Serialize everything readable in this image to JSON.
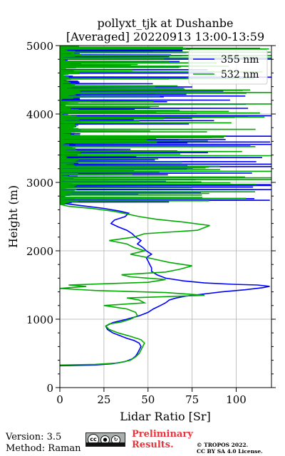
{
  "chart_data": {
    "type": "line",
    "title": "pollyxt_tjk at Dushanbe",
    "subtitle": "[Averaged] 20220913 13:00-13:59",
    "xlabel": "Lidar Ratio [Sr]",
    "ylabel": "Height (m)",
    "xlim": [
      0,
      120
    ],
    "ylim": [
      0,
      5000
    ],
    "xticks": [
      "0",
      "25",
      "50",
      "75",
      "100"
    ],
    "yticks": [
      "0",
      "1000",
      "2000",
      "3000",
      "4000",
      "5000"
    ],
    "grid": true,
    "legend_position": "top-right",
    "series": [
      {
        "name": "355 nm",
        "color": "#0000ff",
        "points": [
          [
            0,
            320
          ],
          [
            20,
            330
          ],
          [
            30,
            350
          ],
          [
            37,
            380
          ],
          [
            41,
            420
          ],
          [
            43,
            460
          ],
          [
            44,
            500
          ],
          [
            45,
            550
          ],
          [
            46,
            600
          ],
          [
            45,
            650
          ],
          [
            42,
            690
          ],
          [
            38,
            720
          ],
          [
            34,
            760
          ],
          [
            30,
            800
          ],
          [
            27,
            850
          ],
          [
            26,
            900
          ],
          [
            30,
            950
          ],
          [
            38,
            1000
          ],
          [
            45,
            1050
          ],
          [
            50,
            1100
          ],
          [
            53,
            1150
          ],
          [
            57,
            1200
          ],
          [
            60,
            1240
          ],
          [
            62,
            1280
          ],
          [
            66,
            1310
          ],
          [
            72,
            1340
          ],
          [
            82,
            1370
          ],
          [
            92,
            1400
          ],
          [
            105,
            1430
          ],
          [
            115,
            1460
          ],
          [
            119,
            1480
          ],
          [
            112,
            1500
          ],
          [
            98,
            1510
          ],
          [
            82,
            1530
          ],
          [
            70,
            1560
          ],
          [
            60,
            1600
          ],
          [
            55,
            1650
          ],
          [
            52,
            1700
          ],
          [
            52,
            1750
          ],
          [
            51,
            1800
          ],
          [
            50,
            1850
          ],
          [
            49,
            1900
          ],
          [
            52,
            1950
          ],
          [
            49,
            2000
          ],
          [
            47,
            2050
          ],
          [
            44,
            2100
          ],
          [
            46,
            2150
          ],
          [
            43,
            2200
          ],
          [
            41,
            2250
          ],
          [
            38,
            2300
          ],
          [
            33,
            2350
          ],
          [
            29,
            2400
          ],
          [
            31,
            2450
          ],
          [
            37,
            2500
          ],
          [
            39,
            2550
          ],
          [
            34,
            2580
          ],
          [
            25,
            2620
          ],
          [
            12,
            2660
          ],
          [
            0,
            2700
          ]
        ],
        "spikes_band": [
          2700,
          5000
        ]
      },
      {
        "name": "532 nm",
        "color": "#00aa00",
        "points": [
          [
            0,
            330
          ],
          [
            20,
            340
          ],
          [
            33,
            360
          ],
          [
            40,
            400
          ],
          [
            43,
            450
          ],
          [
            45,
            500
          ],
          [
            46,
            550
          ],
          [
            47,
            600
          ],
          [
            48,
            650
          ],
          [
            46,
            700
          ],
          [
            40,
            750
          ],
          [
            33,
            800
          ],
          [
            28,
            850
          ],
          [
            26,
            900
          ],
          [
            28,
            930
          ],
          [
            35,
            960
          ],
          [
            40,
            1000
          ],
          [
            44,
            1050
          ],
          [
            43,
            1100
          ],
          [
            38,
            1150
          ],
          [
            25,
            1200
          ],
          [
            48,
            1240
          ],
          [
            45,
            1280
          ],
          [
            38,
            1310
          ],
          [
            82,
            1350
          ],
          [
            60,
            1390
          ],
          [
            20,
            1420
          ],
          [
            0,
            1450
          ],
          [
            15,
            1480
          ],
          [
            5,
            1500
          ],
          [
            50,
            1540
          ],
          [
            60,
            1580
          ],
          [
            40,
            1620
          ],
          [
            35,
            1650
          ],
          [
            60,
            1690
          ],
          [
            68,
            1730
          ],
          [
            75,
            1780
          ],
          [
            62,
            1830
          ],
          [
            55,
            1870
          ],
          [
            48,
            1910
          ],
          [
            40,
            1950
          ],
          [
            48,
            2000
          ],
          [
            42,
            2050
          ],
          [
            38,
            2100
          ],
          [
            28,
            2150
          ],
          [
            42,
            2200
          ],
          [
            48,
            2250
          ],
          [
            78,
            2300
          ],
          [
            85,
            2370
          ],
          [
            70,
            2420
          ],
          [
            55,
            2460
          ],
          [
            45,
            2500
          ],
          [
            38,
            2540
          ],
          [
            30,
            2580
          ],
          [
            18,
            2620
          ],
          [
            5,
            2650
          ],
          [
            0,
            2680
          ]
        ],
        "spikes_band": [
          2680,
          5000
        ]
      }
    ]
  },
  "footer": {
    "version": "Version: 3.5",
    "method": "Method: Raman",
    "cc_label": "cc",
    "preliminary_line1": "Preliminary",
    "preliminary_line2": "Results.",
    "copyright_line1": "© TROPOS 2022.",
    "copyright_line2": "CC BY SA 4.0 License."
  }
}
